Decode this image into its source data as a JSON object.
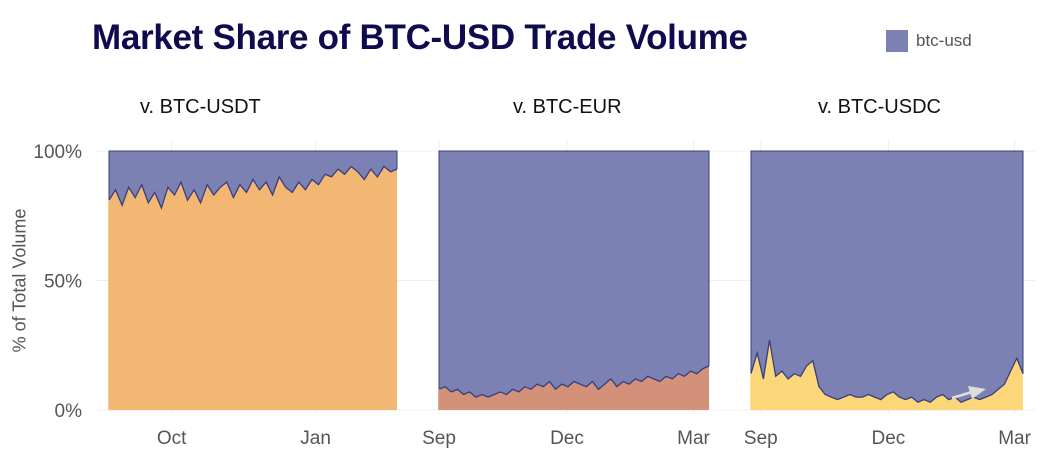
{
  "chart_data": {
    "type": "area",
    "title": "Market Share of BTC-USD Trade Volume",
    "legend": {
      "entries": [
        "btc-usd"
      ],
      "placement": "top-right"
    },
    "ylabel": "% of Total Volume",
    "ylim": [
      0,
      100
    ],
    "yticks": [
      "0%",
      "50%",
      "100%"
    ],
    "grid": true,
    "colors": {
      "btc-usd": "#7b82b3",
      "line": "#3a3d7c",
      "title": "#0e0c4f"
    },
    "panels": [
      {
        "title": "v. BTC-USDT",
        "other_color": "#f2b772",
        "xlim": [
          "2018-08-22",
          "2019-02-22"
        ],
        "xticks": [
          {
            "label": "Oct",
            "date": "2018-10-01"
          },
          {
            "label": "Jan",
            "date": "2019-01-01"
          }
        ],
        "btc_usd_share": [
          19,
          15,
          21,
          14,
          18,
          13,
          20,
          16,
          22,
          14,
          17,
          12,
          19,
          15,
          20,
          13,
          17,
          14,
          12,
          18,
          13,
          16,
          11,
          15,
          12,
          17,
          10,
          14,
          16,
          12,
          15,
          11,
          13,
          9,
          10,
          7,
          9,
          6,
          8,
          11,
          7,
          10,
          6,
          8,
          7
        ]
      },
      {
        "title": "v. BTC-EUR",
        "other_color": "#d3917a",
        "xlim": [
          "2018-09-01",
          "2019-03-12"
        ],
        "xticks": [
          {
            "label": "Sep",
            "date": "2018-09-01"
          },
          {
            "label": "Dec",
            "date": "2018-12-01"
          },
          {
            "label": "Mar",
            "date": "2019-03-01"
          }
        ],
        "btc_usd_share": [
          92,
          91,
          93,
          92,
          94,
          93,
          95,
          94,
          95,
          94,
          93,
          94,
          92,
          93,
          91,
          92,
          90,
          91,
          89,
          92,
          90,
          91,
          89,
          90,
          91,
          89,
          92,
          90,
          88,
          91,
          89,
          90,
          88,
          89,
          87,
          88,
          89,
          87,
          88,
          86,
          87,
          85,
          86,
          84,
          83
        ]
      },
      {
        "title": "v. BTC-USDC",
        "other_color": "#fcd77a",
        "xlim": [
          "2018-08-25",
          "2019-03-07"
        ],
        "xticks": [
          {
            "label": "Sep",
            "date": "2018-09-01"
          },
          {
            "label": "Dec",
            "date": "2018-12-01"
          },
          {
            "label": "Mar",
            "date": "2019-03-01"
          }
        ],
        "btc_usd_share": [
          86,
          78,
          88,
          73,
          87,
          85,
          88,
          86,
          87,
          83,
          81,
          91,
          94,
          95,
          96,
          95,
          94,
          95,
          95,
          94,
          95,
          96,
          94,
          93,
          95,
          96,
          95,
          97,
          96,
          97,
          95,
          94,
          96,
          95,
          97,
          96,
          95,
          96,
          95,
          94,
          92,
          90,
          85,
          80,
          86
        ]
      }
    ]
  }
}
